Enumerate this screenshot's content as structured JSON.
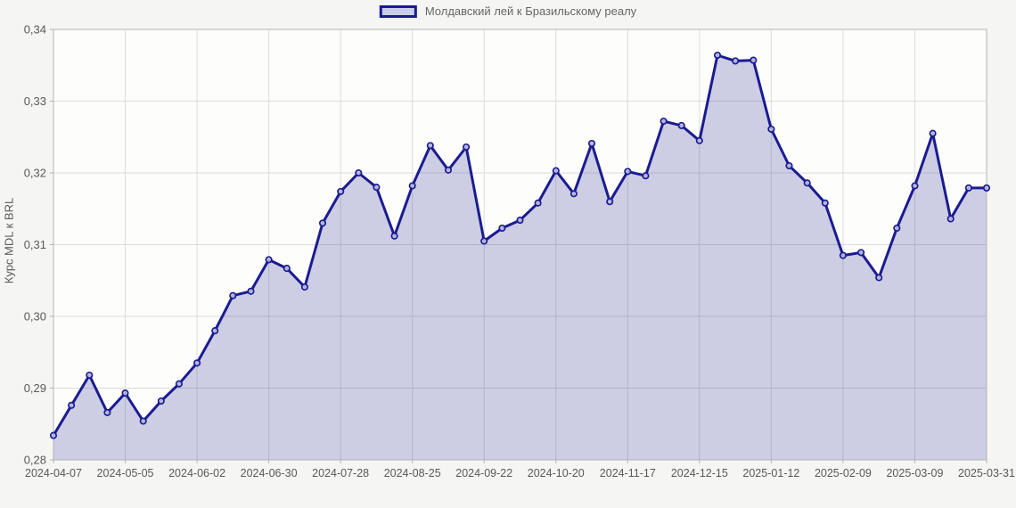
{
  "legend": {
    "label": "Молдавский лей к Бразильскому реалу"
  },
  "y_axis": {
    "title": "Курс MDL к BRL"
  },
  "chart_data": {
    "type": "area",
    "title": "",
    "xlabel": "",
    "ylabel": "Курс MDL к BRL",
    "legend_entry": "Молдавский лей к Бразильскому реалу",
    "legend_position": "top-center",
    "grid": true,
    "ylim": [
      0.28,
      0.34
    ],
    "y_tick_step": 0.01,
    "y_tick_labels": [
      "0,28",
      "0,29",
      "0,30",
      "0,31",
      "0,32",
      "0,33",
      "0,34"
    ],
    "x_tick_every": 4,
    "x_tick_labels": [
      "2024-04-07",
      "2024-05-05",
      "2024-06-02",
      "2024-06-30",
      "2024-07-28",
      "2024-08-25",
      "2024-09-22",
      "2024-10-20",
      "2024-11-17",
      "2024-12-15",
      "2025-01-12",
      "2025-02-09",
      "2025-03-09",
      "2025-03-31"
    ],
    "x": [
      "2024-04-07",
      "2024-04-14",
      "2024-04-21",
      "2024-04-28",
      "2024-05-05",
      "2024-05-12",
      "2024-05-19",
      "2024-05-26",
      "2024-06-02",
      "2024-06-09",
      "2024-06-16",
      "2024-06-23",
      "2024-06-30",
      "2024-07-07",
      "2024-07-14",
      "2024-07-21",
      "2024-07-28",
      "2024-08-04",
      "2024-08-11",
      "2024-08-18",
      "2024-08-25",
      "2024-09-01",
      "2024-09-08",
      "2024-09-15",
      "2024-09-22",
      "2024-09-29",
      "2024-10-06",
      "2024-10-13",
      "2024-10-20",
      "2024-10-27",
      "2024-11-03",
      "2024-11-10",
      "2024-11-17",
      "2024-11-24",
      "2024-12-01",
      "2024-12-08",
      "2024-12-15",
      "2024-12-22",
      "2024-12-29",
      "2025-01-05",
      "2025-01-12",
      "2025-01-19",
      "2025-01-26",
      "2025-02-02",
      "2025-02-09",
      "2025-02-16",
      "2025-02-23",
      "2025-03-02",
      "2025-03-09",
      "2025-03-16",
      "2025-03-23",
      "2025-03-30",
      "2025-03-31"
    ],
    "values": [
      0.2834,
      0.2876,
      0.2918,
      0.2866,
      0.2893,
      0.2854,
      0.2882,
      0.2906,
      0.2935,
      0.298,
      0.3029,
      0.3035,
      0.3079,
      0.3067,
      0.3041,
      0.313,
      0.3174,
      0.32,
      0.318,
      0.3112,
      0.3182,
      0.3238,
      0.3204,
      0.3236,
      0.3105,
      0.3123,
      0.3134,
      0.3158,
      0.3203,
      0.3171,
      0.3241,
      0.316,
      0.3202,
      0.3196,
      0.3272,
      0.3266,
      0.3245,
      0.3364,
      0.3356,
      0.3357,
      0.3261,
      0.321,
      0.3186,
      0.3158,
      0.3085,
      0.3089,
      0.3054,
      0.3123,
      0.3182,
      0.3255,
      0.3136,
      0.3179,
      0.3179
    ],
    "colors": {
      "line": "#1b1b91",
      "area_fill": "rgba(30,30,140,0.21)",
      "marker_fill": "#c9cde6",
      "grid": "#dcdcdc",
      "axis": "#b3b3b3",
      "plot_bg": "#fdfdfc",
      "page_bg": "#f5f5f3",
      "tick_text": "#595959"
    }
  }
}
